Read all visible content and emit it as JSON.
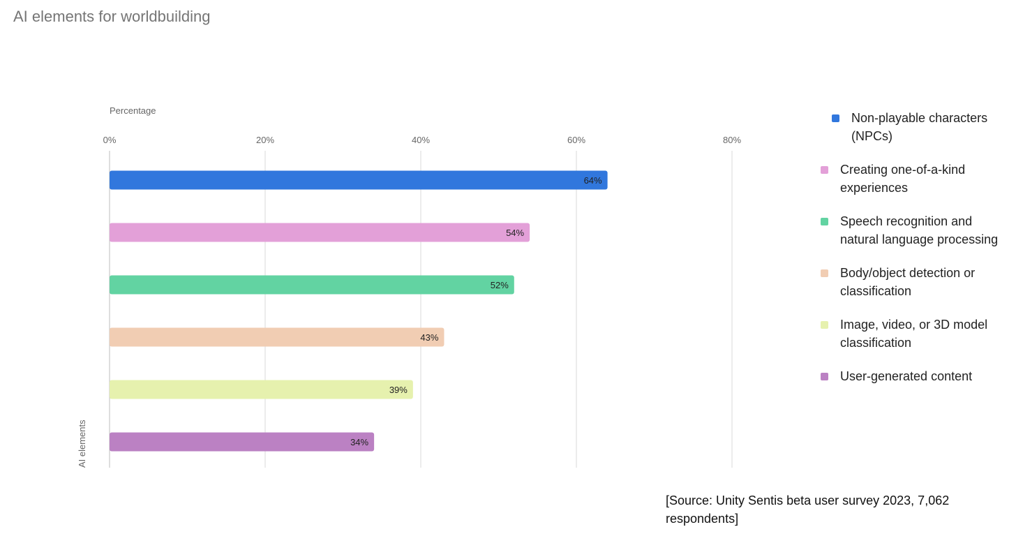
{
  "chart_data": {
    "type": "bar",
    "orientation": "horizontal",
    "title": "AI elements for worldbuilding",
    "xlabel": "Percentage",
    "ylabel": "AI elements",
    "xlim": [
      0,
      80
    ],
    "xticks": [
      "0%",
      "20%",
      "40%",
      "60%",
      "80%"
    ],
    "categories": [
      "Non-playable characters (NPCs)",
      "Creating one-of-a-kind experiences",
      "Speech recognition and natural language processing",
      "Body/object detection or classification",
      "Image, video, or 3D model classification",
      "User-generated content"
    ],
    "values": [
      64,
      54,
      52,
      43,
      39,
      34
    ],
    "value_labels": [
      "64%",
      "54%",
      "52%",
      "43%",
      "39%",
      "34%"
    ],
    "colors": [
      "#3177dd",
      "#e3a0d8",
      "#62d3a2",
      "#f1cdb3",
      "#e6f1ae",
      "#bb81c3"
    ],
    "grid": true,
    "legend": "right"
  },
  "source": "[Source: Unity Sentis beta user survey 2023, 7,062 respondents]"
}
